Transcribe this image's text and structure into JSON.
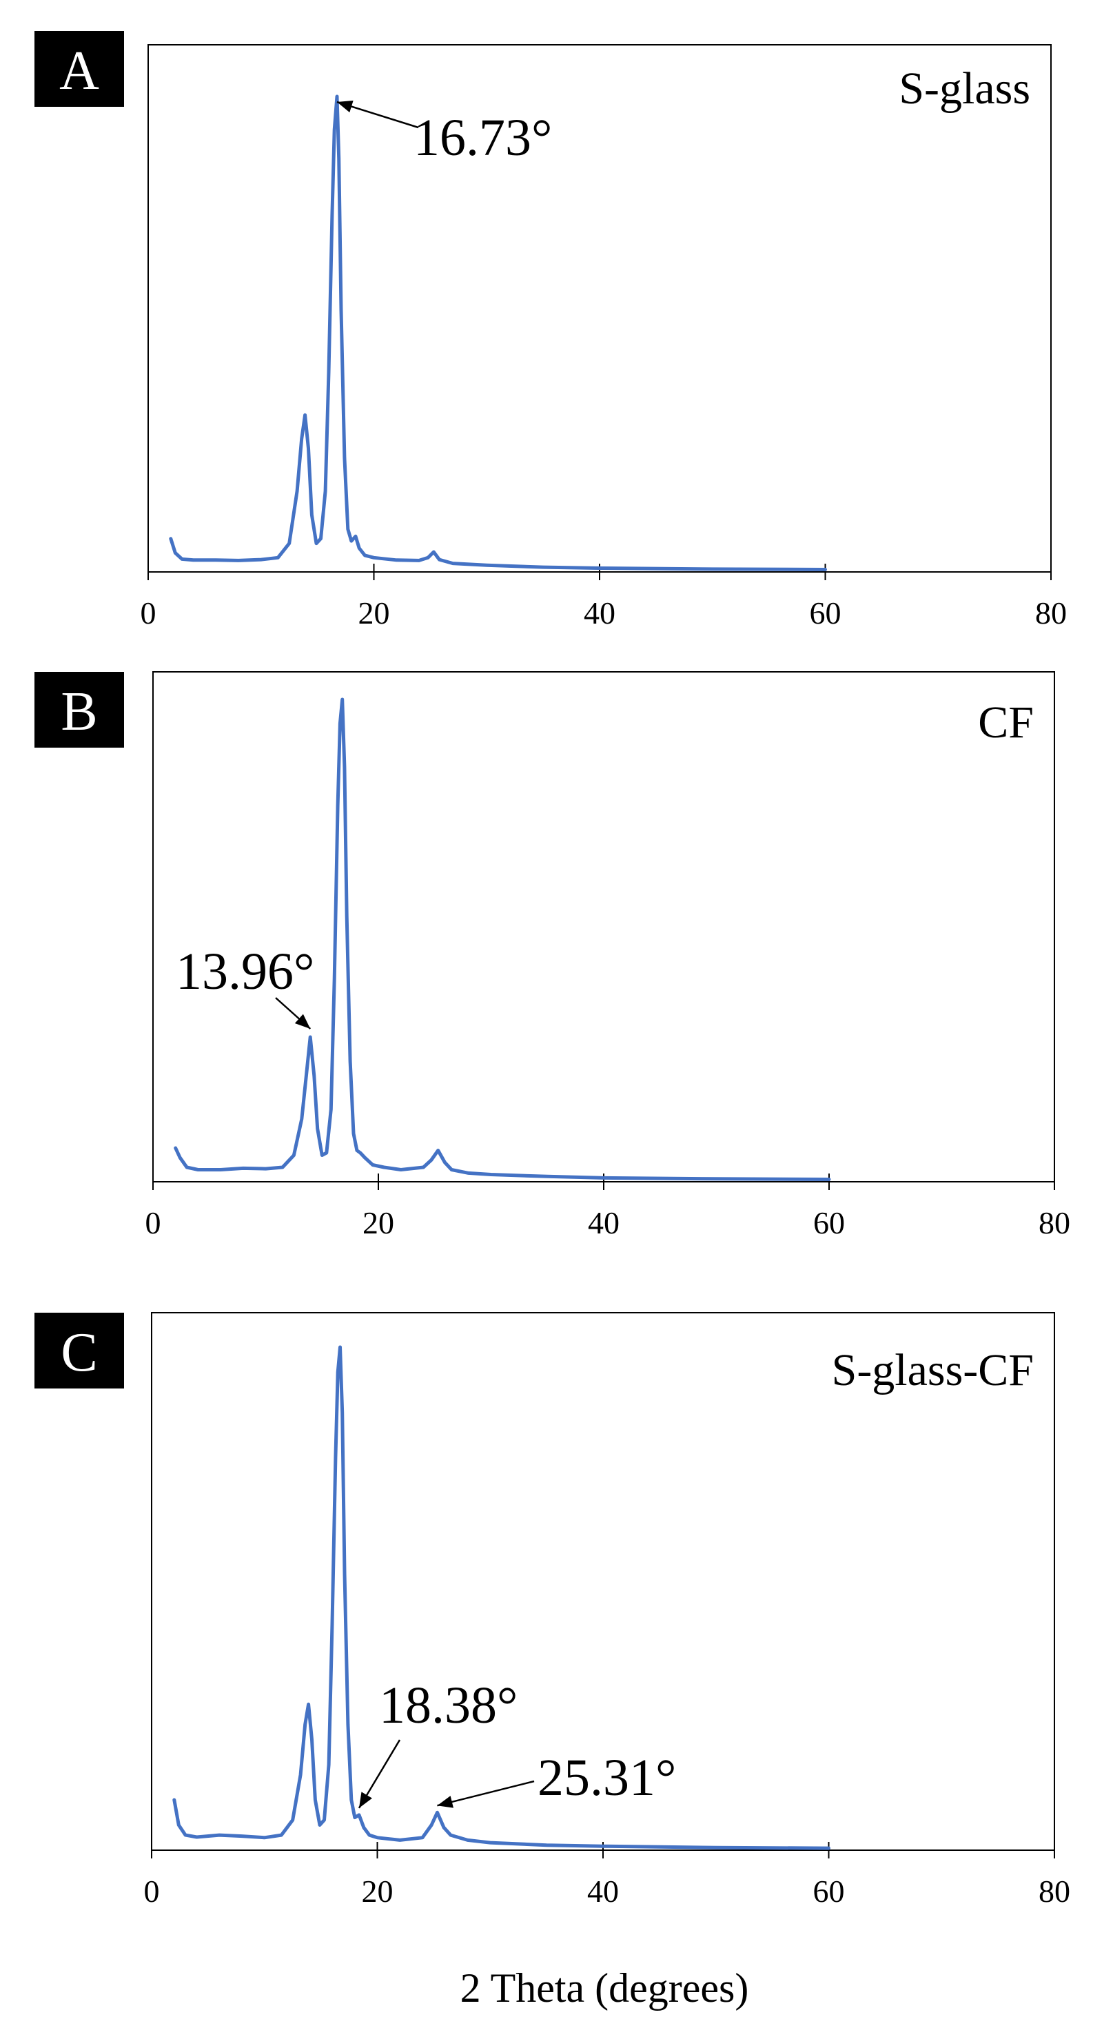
{
  "chart_data": [
    {
      "type": "line",
      "panel_letter": "A",
      "panel_name": "S-glass",
      "xlim": [
        0,
        80
      ],
      "x_ticks": [
        0,
        20,
        40,
        60,
        80
      ],
      "y_ticks_shown": false,
      "grid": false,
      "series": [
        {
          "color": "#4472C4",
          "x": [
            2,
            2.4,
            3,
            4,
            6,
            8,
            10,
            11.5,
            12.5,
            13.2,
            13.6,
            13.9,
            14.2,
            14.5,
            14.9,
            15.3,
            15.7,
            16.0,
            16.3,
            16.5,
            16.73,
            16.9,
            17.1,
            17.4,
            17.7,
            18.0,
            18.38,
            18.7,
            19.2,
            20,
            22,
            24,
            24.8,
            25.3,
            25.8,
            27,
            30,
            35,
            40,
            50,
            60
          ],
          "y": [
            0.07,
            0.04,
            0.027,
            0.025,
            0.025,
            0.024,
            0.026,
            0.03,
            0.06,
            0.17,
            0.28,
            0.33,
            0.26,
            0.12,
            0.06,
            0.07,
            0.17,
            0.42,
            0.75,
            0.93,
            1.0,
            0.87,
            0.55,
            0.24,
            0.09,
            0.065,
            0.075,
            0.05,
            0.035,
            0.03,
            0.025,
            0.024,
            0.03,
            0.042,
            0.026,
            0.018,
            0.014,
            0.01,
            0.008,
            0.006,
            0.005
          ]
        }
      ],
      "annotations": [
        {
          "text": "16.73°",
          "x": 16.73
        }
      ]
    },
    {
      "type": "line",
      "panel_letter": "B",
      "panel_name": "CF",
      "xlim": [
        0,
        80
      ],
      "x_ticks": [
        0,
        20,
        40,
        60,
        80
      ],
      "y_ticks_shown": false,
      "grid": false,
      "series": [
        {
          "color": "#4472C4",
          "x": [
            2,
            2.4,
            3,
            4,
            6,
            8,
            10,
            11.5,
            12.5,
            13.2,
            13.6,
            13.96,
            14.3,
            14.6,
            15.0,
            15.4,
            15.8,
            16.1,
            16.4,
            16.6,
            16.8,
            17.0,
            17.2,
            17.5,
            17.8,
            18.1,
            18.4,
            18.8,
            19.5,
            20.5,
            22,
            24,
            24.7,
            25.3,
            25.9,
            26.5,
            28,
            30,
            35,
            40,
            50,
            60
          ],
          "y": [
            0.07,
            0.05,
            0.03,
            0.025,
            0.025,
            0.028,
            0.027,
            0.03,
            0.055,
            0.13,
            0.22,
            0.3,
            0.22,
            0.11,
            0.055,
            0.06,
            0.15,
            0.42,
            0.78,
            0.95,
            1.0,
            0.86,
            0.55,
            0.25,
            0.1,
            0.065,
            0.06,
            0.05,
            0.035,
            0.03,
            0.025,
            0.03,
            0.045,
            0.065,
            0.04,
            0.025,
            0.018,
            0.015,
            0.011,
            0.008,
            0.006,
            0.005
          ]
        }
      ],
      "annotations": [
        {
          "text": "13.96°",
          "x": 13.96
        }
      ]
    },
    {
      "type": "line",
      "panel_letter": "C",
      "panel_name": "S-glass-CF",
      "xlim": [
        0,
        80
      ],
      "x_ticks": [
        0,
        20,
        40,
        60,
        80
      ],
      "y_ticks_shown": false,
      "grid": false,
      "series": [
        {
          "color": "#4472C4",
          "x": [
            2,
            2.4,
            3,
            4,
            6,
            8,
            10,
            11.5,
            12.5,
            13.2,
            13.6,
            13.9,
            14.2,
            14.5,
            14.9,
            15.3,
            15.7,
            16.0,
            16.3,
            16.5,
            16.7,
            16.9,
            17.1,
            17.4,
            17.7,
            18.0,
            18.38,
            18.8,
            19.3,
            20,
            22,
            24,
            24.8,
            25.31,
            25.9,
            26.5,
            28,
            30,
            35,
            40,
            50,
            60
          ],
          "y": [
            0.1,
            0.05,
            0.03,
            0.026,
            0.03,
            0.028,
            0.025,
            0.03,
            0.06,
            0.15,
            0.25,
            0.29,
            0.22,
            0.1,
            0.05,
            0.06,
            0.17,
            0.45,
            0.78,
            0.95,
            1.0,
            0.87,
            0.55,
            0.25,
            0.1,
            0.065,
            0.07,
            0.045,
            0.03,
            0.025,
            0.02,
            0.025,
            0.05,
            0.075,
            0.045,
            0.03,
            0.02,
            0.015,
            0.01,
            0.008,
            0.005,
            0.004
          ]
        }
      ],
      "annotations": [
        {
          "text": "18.38°",
          "x": 18.38
        },
        {
          "text": "25.31°",
          "x": 25.31
        }
      ]
    }
  ],
  "shared": {
    "xlabel": "2 Theta (degrees)"
  }
}
